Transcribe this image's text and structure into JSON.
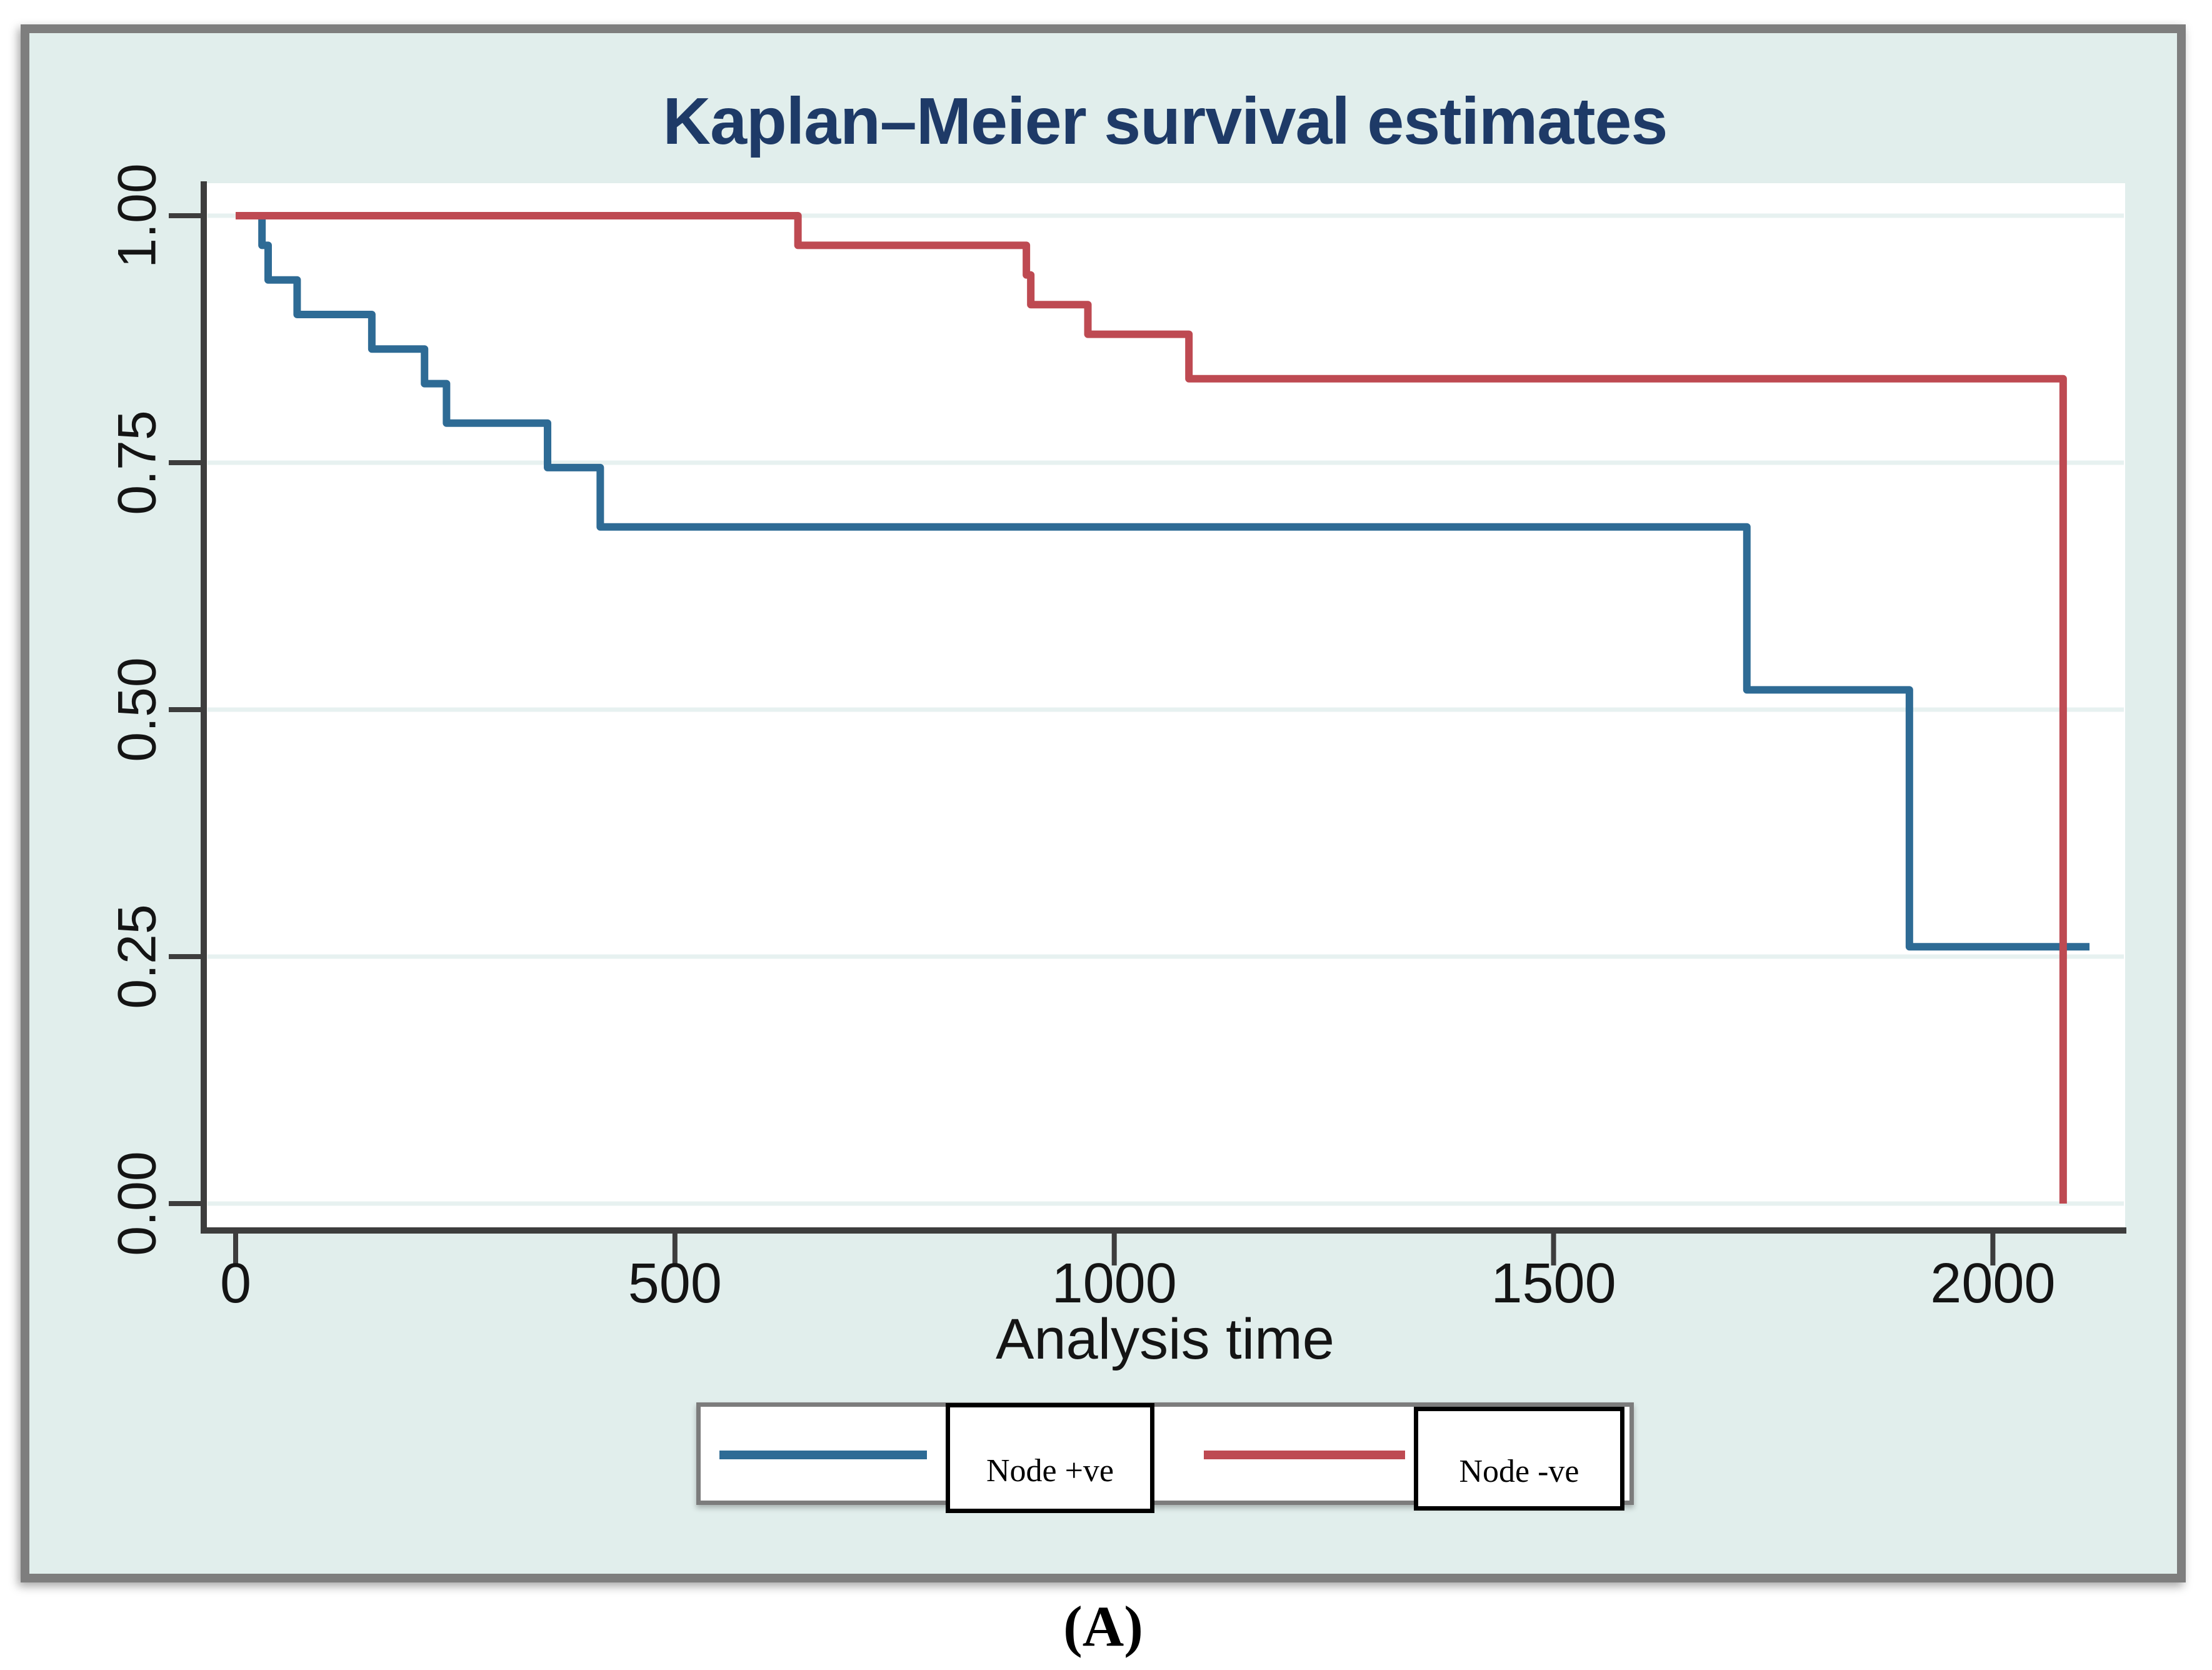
{
  "figure": {
    "title": "Kaplan–Meier survival estimates",
    "panel_label": "(A)"
  },
  "colors": {
    "background": "#e1eeec",
    "plot_background": "#ffffff",
    "gridline": "#e7f1f0",
    "axis": "#3d3d3d",
    "title_text": "#1e3a67",
    "frame_border": "#7e7e7e",
    "node_positive": "#2e6b95",
    "node_negative": "#be4a52"
  },
  "chart_data": {
    "type": "line",
    "variant": "kaplan-meier-step",
    "title": "Kaplan–Meier survival estimates",
    "xlabel": "Analysis time",
    "ylabel": "",
    "xlim": [
      0,
      2150
    ],
    "ylim": [
      0.0,
      1.0
    ],
    "grid": "horizontal-only",
    "legend_position": "bottom-center",
    "x_ticks": [
      {
        "value": 0,
        "label": "0"
      },
      {
        "value": 500,
        "label": "500"
      },
      {
        "value": 1000,
        "label": "1000"
      },
      {
        "value": 1500,
        "label": "1500"
      },
      {
        "value": 2000,
        "label": "2000"
      }
    ],
    "y_ticks": [
      {
        "value": 1.0,
        "label": "1.00"
      },
      {
        "value": 0.75,
        "label": "0.75"
      },
      {
        "value": 0.5,
        "label": "0.50"
      },
      {
        "value": 0.25,
        "label": "0.25"
      },
      {
        "value": 0.0,
        "label": "0.00"
      }
    ],
    "series": [
      {
        "name": "Node +ve",
        "color": "#2e6b95",
        "start_survival": 1.0,
        "steps": [
          [
            30,
            0.97
          ],
          [
            37,
            0.935
          ],
          [
            70,
            0.9
          ],
          [
            155,
            0.865
          ],
          [
            215,
            0.83
          ],
          [
            240,
            0.79
          ],
          [
            355,
            0.745
          ],
          [
            415,
            0.685
          ],
          [
            1720,
            0.52
          ],
          [
            1905,
            0.26
          ]
        ],
        "end_time": 2110
      },
      {
        "name": "Node -ve",
        "color": "#be4a52",
        "start_survival": 1.0,
        "steps": [
          [
            640,
            0.97
          ],
          [
            900,
            0.94
          ],
          [
            905,
            0.91
          ],
          [
            970,
            0.88
          ],
          [
            1085,
            0.835
          ],
          [
            2080,
            0.0
          ]
        ],
        "end_time": 2080
      }
    ]
  },
  "legend": {
    "items": [
      {
        "label": "Node +ve",
        "color": "#2e6b95"
      },
      {
        "label": "Node -ve",
        "color": "#be4a52"
      }
    ]
  }
}
